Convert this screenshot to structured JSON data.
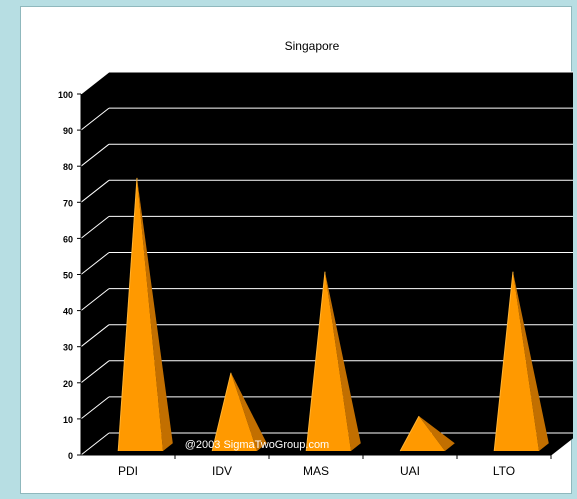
{
  "chart_data": {
    "type": "bar",
    "title": "Singapore",
    "categories": [
      "PDI",
      "IDV",
      "MAS",
      "UAI",
      "LTO"
    ],
    "values": [
      74,
      20,
      48,
      8,
      48
    ],
    "ylim": [
      0,
      100
    ],
    "yticks": [
      0,
      10,
      20,
      30,
      40,
      50,
      60,
      70,
      80,
      90,
      100
    ],
    "xlabel": "",
    "ylabel": "",
    "grid": true,
    "mark_shape": "pyramid",
    "watermark": "@2003 SigmaTwoGroup.com",
    "colors": {
      "plot_background": "#000000",
      "grid": "#ffffff",
      "pyramid_front": "#ff9900",
      "pyramid_side": "#c26f00",
      "page_background": "#b7dee3",
      "panel_background": "#ffffff"
    }
  }
}
